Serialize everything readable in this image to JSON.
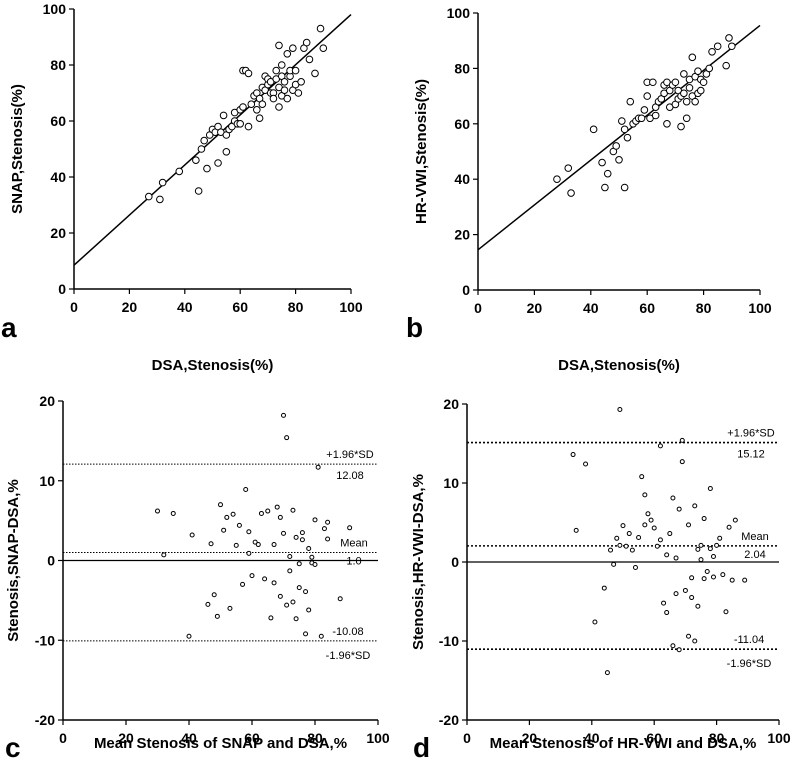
{
  "chart_data": [
    {
      "panel": "a",
      "type": "scatter",
      "xlabel": "DSA,Stenosis(%)",
      "ylabel": "SNAP,Stenosis(%)",
      "xlim": [
        0,
        100
      ],
      "ylim": [
        0,
        100
      ],
      "xticks": [
        "0",
        "20",
        "40",
        "60",
        "80",
        "100"
      ],
      "yticks": [
        "0",
        "20",
        "40",
        "60",
        "80",
        "100"
      ],
      "fit_line": {
        "x": [
          0,
          100
        ],
        "y": [
          8.5,
          98
        ]
      },
      "points": [
        [
          27,
          33
        ],
        [
          31,
          32
        ],
        [
          32,
          38
        ],
        [
          38,
          42
        ],
        [
          44,
          46
        ],
        [
          45,
          35
        ],
        [
          46,
          50
        ],
        [
          47,
          53
        ],
        [
          48,
          43
        ],
        [
          49,
          55
        ],
        [
          50,
          57
        ],
        [
          51,
          56
        ],
        [
          52,
          45
        ],
        [
          52,
          58
        ],
        [
          53,
          56
        ],
        [
          54,
          62
        ],
        [
          55,
          49
        ],
        [
          55,
          55
        ],
        [
          56,
          57
        ],
        [
          57,
          58
        ],
        [
          58,
          60
        ],
        [
          58,
          63
        ],
        [
          59,
          59
        ],
        [
          60,
          59
        ],
        [
          60,
          64
        ],
        [
          61,
          65
        ],
        [
          61,
          78
        ],
        [
          62,
          78
        ],
        [
          63,
          58
        ],
        [
          63,
          77
        ],
        [
          64,
          66
        ],
        [
          65,
          69
        ],
        [
          66,
          64
        ],
        [
          66,
          70
        ],
        [
          67,
          68
        ],
        [
          67,
          61
        ],
        [
          68,
          72
        ],
        [
          68,
          66
        ],
        [
          69,
          76
        ],
        [
          69,
          71
        ],
        [
          70,
          73
        ],
        [
          70,
          75
        ],
        [
          71,
          70
        ],
        [
          71,
          74
        ],
        [
          72,
          70
        ],
        [
          72,
          68
        ],
        [
          73,
          78
        ],
        [
          73,
          75
        ],
        [
          74,
          72
        ],
        [
          74,
          65
        ],
        [
          74,
          87
        ],
        [
          75,
          76
        ],
        [
          75,
          80
        ],
        [
          75,
          69
        ],
        [
          76,
          74
        ],
        [
          76,
          71
        ],
        [
          77,
          68
        ],
        [
          77,
          84
        ],
        [
          78,
          76
        ],
        [
          78,
          78
        ],
        [
          79,
          71
        ],
        [
          79,
          86
        ],
        [
          80,
          78
        ],
        [
          80,
          73
        ],
        [
          81,
          70
        ],
        [
          82,
          74
        ],
        [
          83,
          86
        ],
        [
          84,
          88
        ],
        [
          85,
          82
        ],
        [
          87,
          77
        ],
        [
          89,
          93
        ],
        [
          90,
          86
        ]
      ]
    },
    {
      "panel": "b",
      "type": "scatter",
      "xlabel": "DSA,Stenosis(%)",
      "ylabel": "HR-VWI,Stenosis(%)",
      "xlim": [
        0,
        100
      ],
      "ylim": [
        0,
        100
      ],
      "xticks": [
        "0",
        "20",
        "40",
        "60",
        "80",
        "100"
      ],
      "yticks": [
        "0",
        "20",
        "40",
        "60",
        "80",
        "100"
      ],
      "fit_line": {
        "x": [
          0,
          100
        ],
        "y": [
          14.5,
          95.5
        ]
      },
      "points": [
        [
          28,
          40
        ],
        [
          32,
          44
        ],
        [
          33,
          35
        ],
        [
          41,
          58
        ],
        [
          44,
          46
        ],
        [
          45,
          37
        ],
        [
          46,
          42
        ],
        [
          48,
          50
        ],
        [
          49,
          52
        ],
        [
          50,
          47
        ],
        [
          51,
          61
        ],
        [
          52,
          37
        ],
        [
          52,
          58
        ],
        [
          53,
          55
        ],
        [
          54,
          68
        ],
        [
          55,
          60
        ],
        [
          56,
          61
        ],
        [
          57,
          62
        ],
        [
          58,
          62
        ],
        [
          59,
          65
        ],
        [
          60,
          70
        ],
        [
          60,
          75
        ],
        [
          61,
          62
        ],
        [
          62,
          75
        ],
        [
          63,
          66
        ],
        [
          63,
          63
        ],
        [
          64,
          68
        ],
        [
          65,
          69
        ],
        [
          66,
          71
        ],
        [
          66,
          74
        ],
        [
          67,
          75
        ],
        [
          67,
          60
        ],
        [
          68,
          72
        ],
        [
          68,
          66
        ],
        [
          69,
          74
        ],
        [
          70,
          67
        ],
        [
          70,
          75
        ],
        [
          71,
          69
        ],
        [
          71,
          72
        ],
        [
          72,
          59
        ],
        [
          72,
          70
        ],
        [
          73,
          71
        ],
        [
          73,
          78
        ],
        [
          74,
          68
        ],
        [
          74,
          62
        ],
        [
          75,
          73
        ],
        [
          75,
          76
        ],
        [
          76,
          70
        ],
        [
          76,
          84
        ],
        [
          77,
          77
        ],
        [
          77,
          68
        ],
        [
          78,
          71
        ],
        [
          78,
          79
        ],
        [
          79,
          76
        ],
        [
          79,
          72
        ],
        [
          80,
          75
        ],
        [
          81,
          78
        ],
        [
          82,
          80
        ],
        [
          83,
          86
        ],
        [
          85,
          88
        ],
        [
          88,
          81
        ],
        [
          89,
          91
        ],
        [
          90,
          88
        ]
      ]
    },
    {
      "panel": "c",
      "type": "scatter",
      "xlabel": "Mean Stenosis of SNAP and DSA,%",
      "ylabel": "Stenosis,SNAP-DSA,%",
      "xlim": [
        0,
        100
      ],
      "ylim": [
        -20,
        20
      ],
      "xticks": [
        "0",
        "20",
        "40",
        "60",
        "80",
        "100"
      ],
      "yticks": [
        "-20",
        "-10",
        "0",
        "10",
        "20"
      ],
      "lines": {
        "upper": 12.08,
        "mean": 1.0,
        "lower": -10.08
      },
      "labels": {
        "upper": "+1.96*SD",
        "upper_value": "12.08",
        "mean": "Mean",
        "mean_value": "1.0",
        "lower_value": "-10.08",
        "lower": "-1.96*SD"
      },
      "points": [
        [
          30,
          6.2
        ],
        [
          32,
          0.7
        ],
        [
          35,
          5.9
        ],
        [
          40,
          -9.5
        ],
        [
          41,
          3.2
        ],
        [
          46,
          -5.5
        ],
        [
          47,
          2.1
        ],
        [
          48,
          -4.3
        ],
        [
          49,
          -7
        ],
        [
          50,
          7
        ],
        [
          51,
          3.8
        ],
        [
          52,
          5.4
        ],
        [
          53,
          -6
        ],
        [
          54,
          5.8
        ],
        [
          55,
          1.9
        ],
        [
          56,
          4.4
        ],
        [
          57,
          -3
        ],
        [
          58,
          8.9
        ],
        [
          59,
          3.6
        ],
        [
          59,
          0.9
        ],
        [
          60,
          -1.9
        ],
        [
          61,
          2.3
        ],
        [
          62,
          2
        ],
        [
          63,
          5.9
        ],
        [
          64,
          -2.3
        ],
        [
          65,
          6.2
        ],
        [
          66,
          -7.2
        ],
        [
          67,
          -2.8
        ],
        [
          67,
          2
        ],
        [
          68,
          6.7
        ],
        [
          69,
          5.4
        ],
        [
          69,
          -4.5
        ],
        [
          70,
          3.4
        ],
        [
          70,
          18.2
        ],
        [
          71,
          15.4
        ],
        [
          71,
          -5.6
        ],
        [
          72,
          0.5
        ],
        [
          72,
          -1.3
        ],
        [
          73,
          6.3
        ],
        [
          73,
          -5.2
        ],
        [
          74,
          2.9
        ],
        [
          74,
          -7.3
        ],
        [
          75,
          -3.4
        ],
        [
          75,
          -0.4
        ],
        [
          76,
          2.6
        ],
        [
          76,
          3.5
        ],
        [
          77,
          -9.2
        ],
        [
          77,
          -3.9
        ],
        [
          78,
          1.5
        ],
        [
          78,
          -6.2
        ],
        [
          79,
          0.4
        ],
        [
          79,
          -0.3
        ],
        [
          80,
          -0.5
        ],
        [
          80,
          5.1
        ],
        [
          81,
          11.7
        ],
        [
          82,
          -9.5
        ],
        [
          83,
          4
        ],
        [
          84,
          2.7
        ],
        [
          84,
          4.8
        ],
        [
          88,
          -4.8
        ],
        [
          91,
          4.1
        ]
      ]
    },
    {
      "panel": "d",
      "type": "scatter",
      "xlabel": "Mean Stenosis of HR-VWI and DSA,%",
      "ylabel": "Stenosis,HR-VWI-DSA,%",
      "xlim": [
        0,
        100
      ],
      "ylim": [
        -20,
        20
      ],
      "xticks": [
        "0",
        "20",
        "40",
        "60",
        "80",
        "100"
      ],
      "yticks": [
        "-20",
        "-10",
        "0",
        "10",
        "20"
      ],
      "lines": {
        "upper": 15.12,
        "mean": 2.04,
        "lower": -11.04
      },
      "labels": {
        "upper": "+1.96*SD",
        "upper_value": "15.12",
        "mean": "Mean",
        "mean_value": "2.04",
        "lower_value": "-11.04",
        "lower": "-1.96*SD"
      },
      "points": [
        [
          34,
          13.6
        ],
        [
          35,
          4
        ],
        [
          38,
          12.4
        ],
        [
          41,
          -7.6
        ],
        [
          44,
          -3.3
        ],
        [
          45,
          -14
        ],
        [
          46,
          1.5
        ],
        [
          47,
          -0.3
        ],
        [
          48,
          3
        ],
        [
          49,
          2.1
        ],
        [
          49,
          19.3
        ],
        [
          50,
          4.6
        ],
        [
          51,
          2
        ],
        [
          52,
          3.6
        ],
        [
          53,
          1.5
        ],
        [
          54,
          -0.7
        ],
        [
          55,
          3.1
        ],
        [
          56,
          10.8
        ],
        [
          57,
          4.7
        ],
        [
          57,
          8.5
        ],
        [
          58,
          6.1
        ],
        [
          59,
          5.3
        ],
        [
          60,
          4.3
        ],
        [
          61,
          2
        ],
        [
          62,
          2.8
        ],
        [
          62,
          14.7
        ],
        [
          63,
          -5.2
        ],
        [
          64,
          -6.4
        ],
        [
          64,
          0.9
        ],
        [
          65,
          3.6
        ],
        [
          66,
          8.1
        ],
        [
          66,
          -10.6
        ],
        [
          67,
          -4
        ],
        [
          67,
          0.5
        ],
        [
          68,
          -11.1
        ],
        [
          68,
          6.7
        ],
        [
          69,
          15.4
        ],
        [
          69,
          12.7
        ],
        [
          70,
          -3.6
        ],
        [
          71,
          -9.4
        ],
        [
          71,
          4.7
        ],
        [
          72,
          -2
        ],
        [
          72,
          -4.5
        ],
        [
          73,
          -10
        ],
        [
          73,
          7.1
        ],
        [
          74,
          -5.6
        ],
        [
          74,
          1.6
        ],
        [
          75,
          2.1
        ],
        [
          75,
          0.3
        ],
        [
          76,
          5.5
        ],
        [
          76,
          -2.1
        ],
        [
          77,
          -1.2
        ],
        [
          78,
          9.3
        ],
        [
          78,
          1.7
        ],
        [
          79,
          -1.9
        ],
        [
          79,
          0.7
        ],
        [
          80,
          2.1
        ],
        [
          81,
          3
        ],
        [
          82,
          -1.6
        ],
        [
          83,
          -6.3
        ],
        [
          84,
          4.4
        ],
        [
          85,
          -2.3
        ],
        [
          86,
          5.3
        ],
        [
          89,
          -2.3
        ]
      ]
    }
  ]
}
